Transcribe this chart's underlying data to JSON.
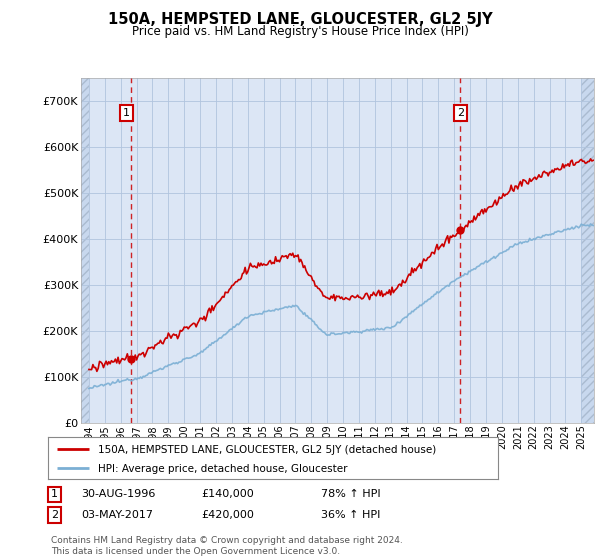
{
  "title": "150A, HEMPSTED LANE, GLOUCESTER, GL2 5JY",
  "subtitle": "Price paid vs. HM Land Registry's House Price Index (HPI)",
  "hpi_label": "HPI: Average price, detached house, Gloucester",
  "property_label": "150A, HEMPSTED LANE, GLOUCESTER, GL2 5JY (detached house)",
  "sale1_date": "30-AUG-1996",
  "sale1_price": 140000,
  "sale1_note": "78% ↑ HPI",
  "sale2_date": "03-MAY-2017",
  "sale2_price": 420000,
  "sale2_note": "36% ↑ HPI",
  "sale1_x": 1996.67,
  "sale2_x": 2017.34,
  "property_color": "#cc0000",
  "hpi_color": "#7bafd4",
  "plot_bg": "#dce6f5",
  "hatch_bg": "#c8d8ee",
  "background_color": "#ffffff",
  "ylim": [
    0,
    750000
  ],
  "xlim_start": 1993.5,
  "xlim_end": 2025.8,
  "footer": "Contains HM Land Registry data © Crown copyright and database right 2024.\nThis data is licensed under the Open Government Licence v3.0."
}
